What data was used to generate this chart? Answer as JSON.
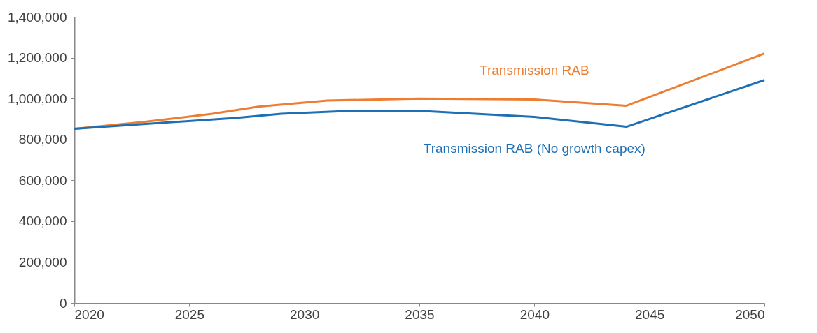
{
  "chart_data": {
    "type": "line",
    "xlim": [
      2020,
      2050
    ],
    "xticks": [
      2020,
      2025,
      2030,
      2035,
      2040,
      2045,
      2050
    ],
    "ylim": [
      0,
      1400000
    ],
    "yticks": [
      0,
      {
        "value": 200000,
        "label": "200,000"
      },
      {
        "value": 400000,
        "label": "400,000"
      },
      {
        "value": 600000,
        "label": "600,000"
      },
      {
        "value": 800000,
        "label": "800,000"
      },
      {
        "value": 1000000,
        "label": "1,000,000"
      },
      {
        "value": 1200000,
        "label": "1,200,000"
      },
      {
        "value": 1400000,
        "label": "1,400,000"
      }
    ],
    "grid": false,
    "legend": false,
    "line_style": "solid",
    "marker": "none",
    "series": [
      {
        "name": "Transmission RAB",
        "color": "#ed7d31",
        "x": [
          2020,
          2023,
          2026,
          2028,
          2031,
          2035,
          2040,
          2044,
          2050
        ],
        "values": [
          852000,
          885000,
          925000,
          960000,
          990000,
          1000000,
          995000,
          965000,
          1220000
        ]
      },
      {
        "name": "Transmission RAB (No growth capex)",
        "color": "#1f6fb4",
        "x": [
          2020,
          2023,
          2027,
          2029,
          2032,
          2035,
          2040,
          2044,
          2050
        ],
        "values": [
          852000,
          875000,
          905000,
          925000,
          940000,
          940000,
          910000,
          862000,
          1090000
        ]
      }
    ]
  }
}
